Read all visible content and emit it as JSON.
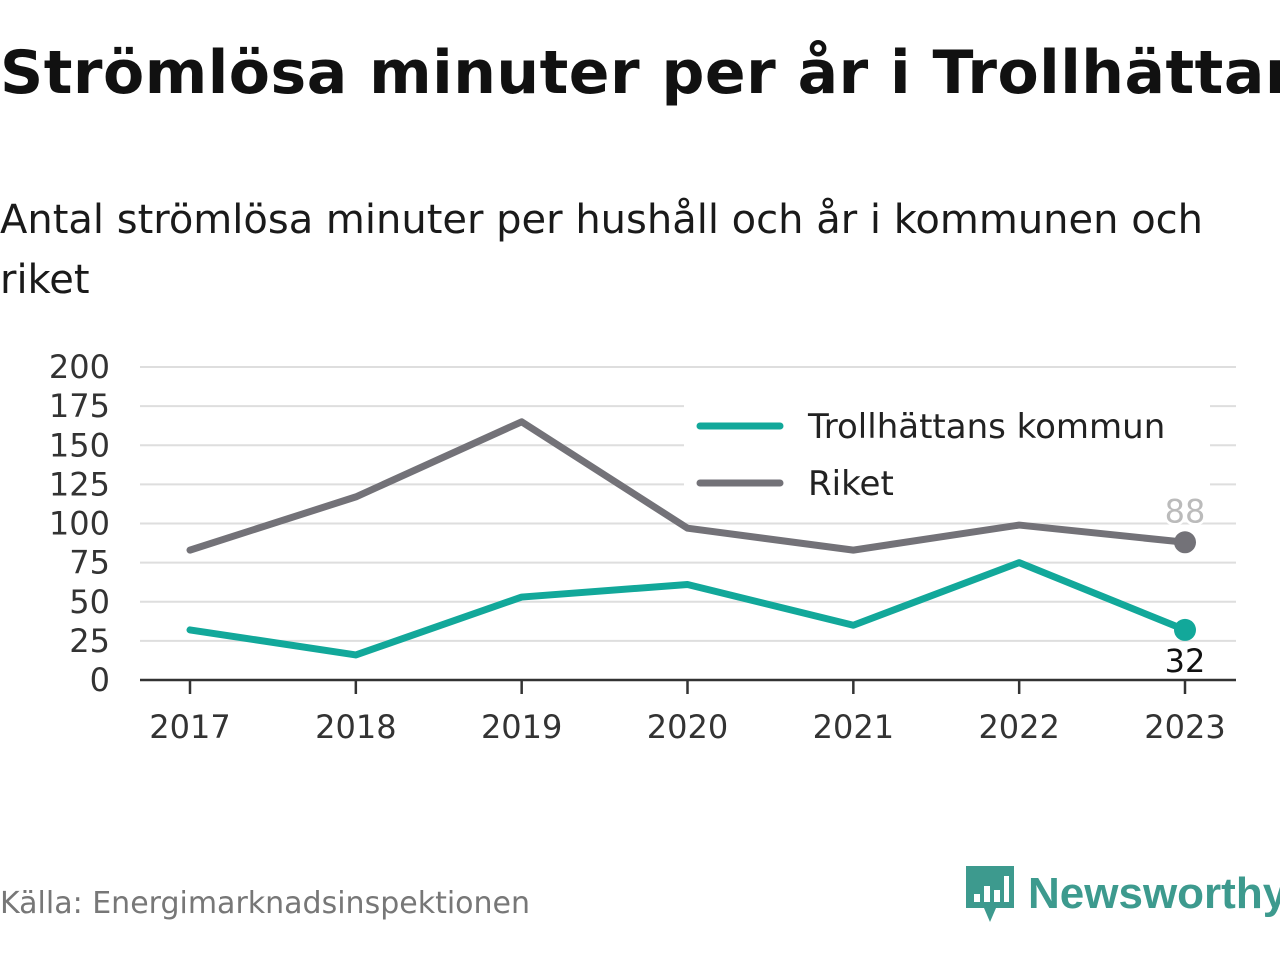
{
  "header": {
    "title": "Strömlösa minuter per år i Trollhättan",
    "subtitle": "Antal strömlösa minuter per hushåll och år i kommunen och riket"
  },
  "footer": {
    "source": "Källa: Energimarknadsinspektionen",
    "brand": "Newsworthy"
  },
  "colors": {
    "kommun": "#12a89a",
    "riket": "#737278",
    "grid": "#dedede",
    "brand": "#3d9a8e"
  },
  "chart_data": {
    "type": "line",
    "title": "Strömlösa minuter per år i Trollhättan",
    "x": [
      "2017",
      "2018",
      "2019",
      "2020",
      "2021",
      "2022",
      "2023"
    ],
    "ylim": [
      0,
      200
    ],
    "yticks": [
      "0",
      "25",
      "50",
      "75",
      "100",
      "125",
      "150",
      "175",
      "200"
    ],
    "grid": true,
    "legend_position": "top-right",
    "series": [
      {
        "name": "Trollhättans kommun",
        "values": [
          32,
          16,
          53,
          61,
          35,
          75,
          32
        ],
        "color": "#12a89a",
        "end_label": "32"
      },
      {
        "name": "Riket",
        "values": [
          83,
          117,
          165,
          97,
          83,
          99,
          88
        ],
        "color": "#737278",
        "end_label": "88"
      }
    ]
  }
}
